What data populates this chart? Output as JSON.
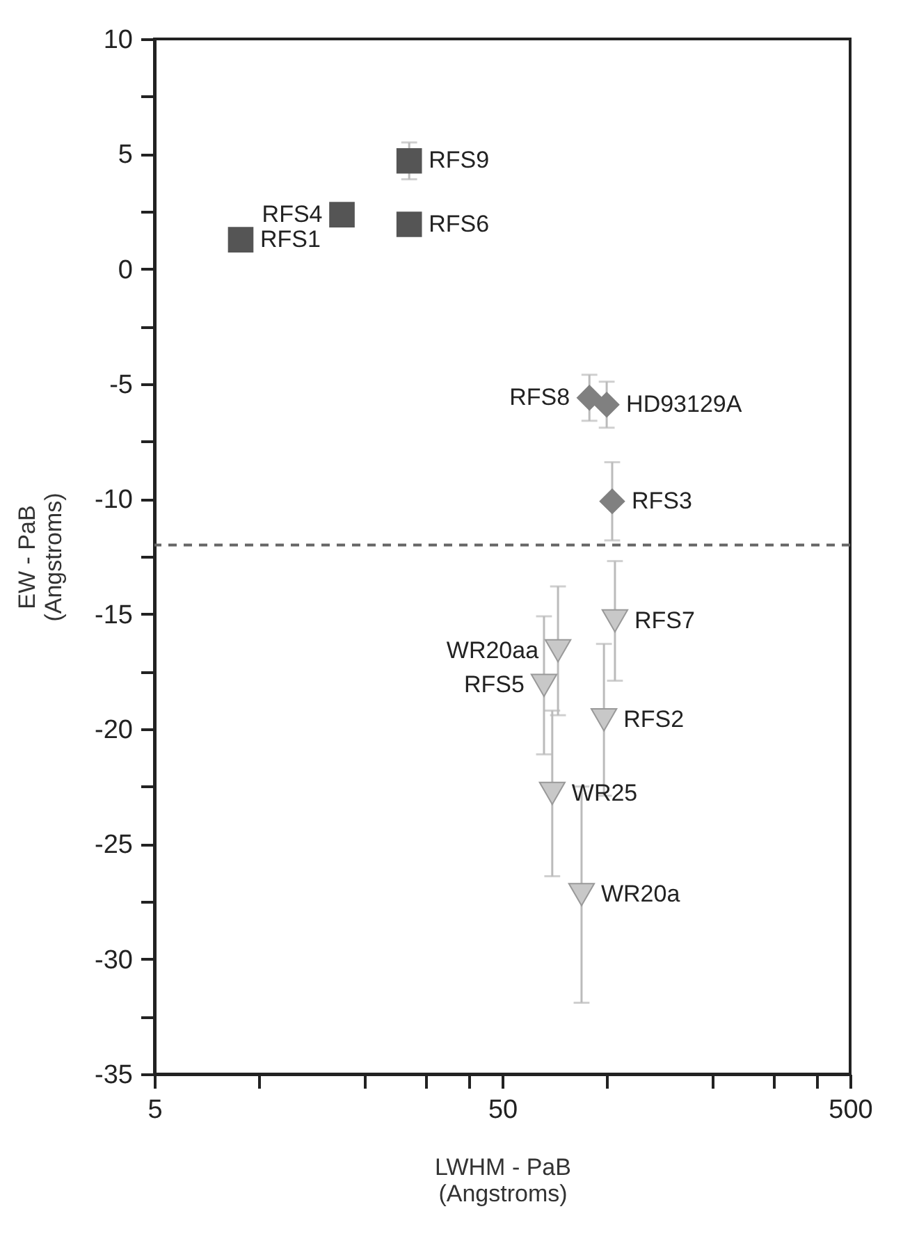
{
  "chart_data": {
    "type": "scatter",
    "xlabel": "LWHM - PaB\n(Angstroms)",
    "ylabel": "EW - PaB\n(Angstroms)",
    "log": "x",
    "xlim": [
      5,
      500
    ],
    "ylim": [
      -35,
      10
    ],
    "xticks": [
      5,
      {
        "value": 10,
        "label": null
      },
      {
        "value": 20,
        "label": null
      },
      {
        "value": 30,
        "label": null
      },
      {
        "value": 40,
        "label": null
      },
      50,
      {
        "value": 100,
        "label": null
      },
      {
        "value": 200,
        "label": null
      },
      {
        "value": 300,
        "label": null
      },
      {
        "value": 400,
        "label": null
      },
      500
    ],
    "yticks": [
      10,
      {
        "value": 7.5,
        "label": null
      },
      5,
      {
        "value": 2.5,
        "label": null
      },
      0,
      {
        "value": -2.5,
        "label": null
      },
      -5,
      {
        "value": -7.5,
        "label": null
      },
      -10,
      {
        "value": -12.5,
        "label": null
      },
      -15,
      {
        "value": -17.5,
        "label": null
      },
      -20,
      {
        "value": -22.5,
        "label": null
      },
      -25,
      {
        "value": -27.5,
        "label": null
      },
      -30,
      {
        "value": -32.5,
        "label": null
      },
      -35
    ],
    "grid": false,
    "series": [
      {
        "color": "#555555",
        "marker": "square",
        "x": [
          8.85,
          17.3,
          27,
          27
        ],
        "values": [
          1.27,
          2.36,
          4.7,
          1.94
        ],
        "errors": [
          null,
          null,
          0.8,
          null
        ]
      },
      {
        "color": "#808080",
        "marker": "diamond",
        "x": [
          89,
          99.8,
          103.5
        ],
        "values": [
          -5.6,
          -5.9,
          -10.1
        ],
        "errors": [
          1,
          1,
          1.7
        ]
      },
      {
        "color": "#c8c8c8",
        "marker": "triangle-down",
        "x": [
          72.3,
          65.9,
          69.6,
          105.4,
          98,
          84.5
        ],
        "values": [
          -16.6,
          -18.1,
          -22.8,
          -15.3,
          -19.6,
          -27.2
        ],
        "errors": [
          2.8,
          3,
          3.6,
          2.6,
          3.3,
          4.7
        ]
      }
    ],
    "ref_lines": [
      {
        "axis": "y",
        "value": -12,
        "color": "#666666",
        "line_style": "dashed"
      }
    ],
    "annotations": [
      {
        "text": "RFS1",
        "x": 8.85,
        "y": 1.27
      },
      {
        "text": "RFS4",
        "x": 17.3,
        "y": 2.36
      },
      {
        "text": "RFS9",
        "x": 27,
        "y": 4.7
      },
      {
        "text": "RFS6",
        "x": 27,
        "y": 1.94
      },
      {
        "text": "RFS8",
        "x": 89,
        "y": -5.6
      },
      {
        "text": "HD93129A",
        "x": 99.8,
        "y": -5.9
      },
      {
        "text": "RFS3",
        "x": 103.5,
        "y": -10.1
      },
      {
        "text": "WR20aa",
        "x": 72.3,
        "y": -16.6
      },
      {
        "text": "RFS5",
        "x": 65.9,
        "y": -18.1
      },
      {
        "text": "WR25",
        "x": 69.6,
        "y": -22.8
      },
      {
        "text": "RFS7",
        "x": 105.4,
        "y": -15.3
      },
      {
        "text": "RFS2",
        "x": 98,
        "y": -19.6
      },
      {
        "text": "WR20a",
        "x": 84.5,
        "y": -27.2
      }
    ]
  }
}
